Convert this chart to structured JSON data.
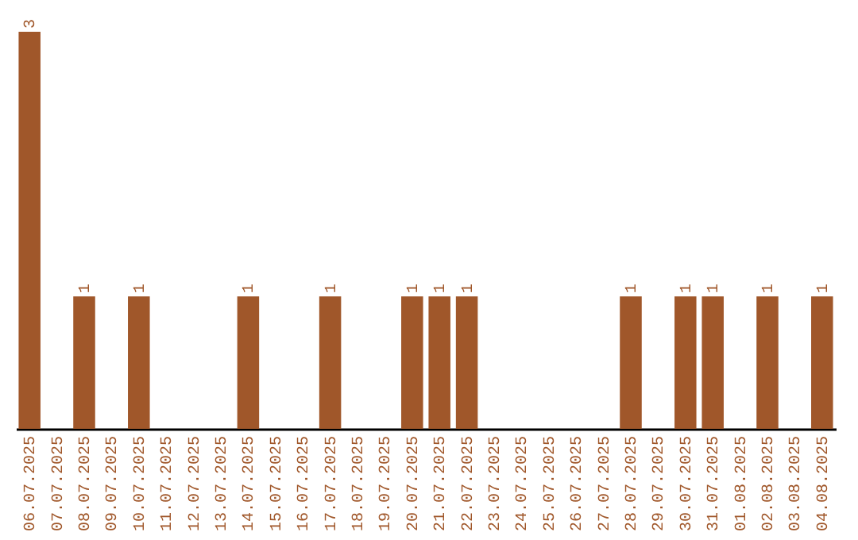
{
  "chart_data": {
    "type": "bar",
    "categories": [
      "06.07.2025",
      "07.07.2025",
      "08.07.2025",
      "09.07.2025",
      "10.07.2025",
      "11.07.2025",
      "12.07.2025",
      "13.07.2025",
      "14.07.2025",
      "15.07.2025",
      "16.07.2025",
      "17.07.2025",
      "18.07.2025",
      "19.07.2025",
      "20.07.2025",
      "21.07.2025",
      "22.07.2025",
      "23.07.2025",
      "24.07.2025",
      "25.07.2025",
      "26.07.2025",
      "27.07.2025",
      "28.07.2025",
      "29.07.2025",
      "30.07.2025",
      "31.07.2025",
      "01.08.2025",
      "02.08.2025",
      "03.08.2025",
      "04.08.2025"
    ],
    "values": [
      3,
      0,
      1,
      0,
      1,
      0,
      0,
      0,
      1,
      0,
      0,
      1,
      0,
      0,
      1,
      1,
      1,
      0,
      0,
      0,
      0,
      0,
      1,
      0,
      1,
      1,
      0,
      1,
      0,
      1
    ],
    "value_labels": [
      "3",
      null,
      "1",
      null,
      "1",
      null,
      null,
      null,
      "1",
      null,
      null,
      "1",
      null,
      null,
      "1",
      "1",
      "1",
      null,
      null,
      null,
      null,
      null,
      "1",
      null,
      "1",
      "1",
      null,
      "1",
      null,
      "1"
    ],
    "color": "#a0572a"
  }
}
